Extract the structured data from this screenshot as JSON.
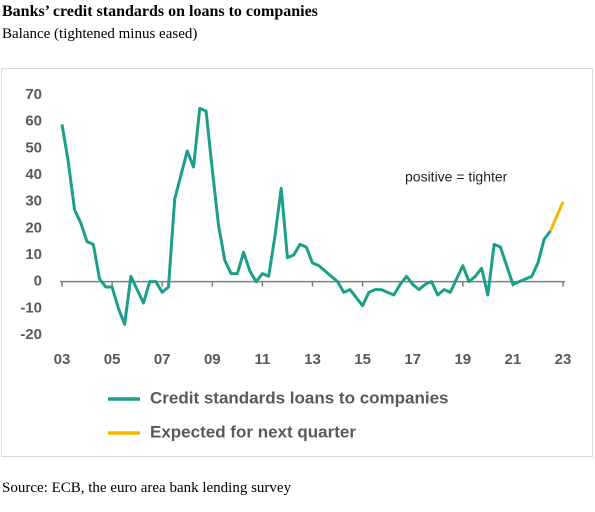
{
  "chart_data": {
    "type": "line",
    "title": "Banks’ credit standards on loans to companies",
    "subtitle": "Balance (tightened minus eased)",
    "source": "Source: ECB, the euro area bank lending survey",
    "annotation": "positive = tighter",
    "xlim": [
      2003,
      2023
    ],
    "xticks": [
      {
        "value": 2003,
        "label": "03"
      },
      {
        "value": 2005,
        "label": "05"
      },
      {
        "value": 2007,
        "label": "07"
      },
      {
        "value": 2009,
        "label": "09"
      },
      {
        "value": 2011,
        "label": "11"
      },
      {
        "value": 2013,
        "label": "13"
      },
      {
        "value": 2015,
        "label": "15"
      },
      {
        "value": 2017,
        "label": "17"
      },
      {
        "value": 2019,
        "label": "19"
      },
      {
        "value": 2021,
        "label": "21"
      },
      {
        "value": 2023,
        "label": "23"
      }
    ],
    "ylim": [
      -20,
      70
    ],
    "yticks": [
      -20,
      -10,
      0,
      10,
      20,
      30,
      40,
      50,
      60,
      70
    ],
    "grid": false,
    "series": [
      {
        "name": "Credit standards loans to companies",
        "color": "#1b9e8a",
        "x": [
          2003,
          2003.25,
          2003.5,
          2003.75,
          2004,
          2004.25,
          2004.5,
          2004.75,
          2005,
          2005.25,
          2005.5,
          2005.75,
          2006,
          2006.25,
          2006.5,
          2006.75,
          2007,
          2007.25,
          2007.5,
          2007.75,
          2008,
          2008.25,
          2008.5,
          2008.75,
          2009,
          2009.25,
          2009.5,
          2009.75,
          2010,
          2010.25,
          2010.5,
          2010.75,
          2011,
          2011.25,
          2011.5,
          2011.75,
          2012,
          2012.25,
          2012.5,
          2012.75,
          2013,
          2013.25,
          2013.5,
          2013.75,
          2014,
          2014.25,
          2014.5,
          2014.75,
          2015,
          2015.25,
          2015.5,
          2015.75,
          2016,
          2016.25,
          2016.5,
          2016.75,
          2017,
          2017.25,
          2017.5,
          2017.75,
          2018,
          2018.25,
          2018.5,
          2018.75,
          2019,
          2019.25,
          2019.5,
          2019.75,
          2020,
          2020.25,
          2020.5,
          2020.75,
          2021,
          2021.25,
          2021.5,
          2021.75,
          2022,
          2022.25,
          2022.5
        ],
        "values": [
          59,
          45,
          27,
          22,
          15,
          14,
          1,
          -2,
          -2,
          -10,
          -16,
          2,
          -3,
          -8,
          0,
          0,
          -4,
          -2,
          31,
          40,
          49,
          43,
          65,
          64,
          42,
          21,
          8,
          3,
          3,
          11,
          4,
          0,
          3,
          2,
          17,
          35,
          9,
          10,
          14,
          13,
          7,
          6,
          4,
          2,
          0,
          -4,
          -3,
          -6,
          -9,
          -4,
          -3,
          -3,
          -4,
          -5,
          -1,
          2,
          -1,
          -3,
          -1,
          0,
          -5,
          -3,
          -4,
          1,
          6,
          0,
          2,
          5,
          -5,
          14,
          13,
          6,
          -1,
          0,
          1,
          2,
          7,
          16,
          19
        ]
      },
      {
        "name": "Expected for next quarter",
        "color": "#f5b800",
        "x": [
          2022.5,
          2023
        ],
        "values": [
          19,
          30
        ]
      }
    ]
  }
}
